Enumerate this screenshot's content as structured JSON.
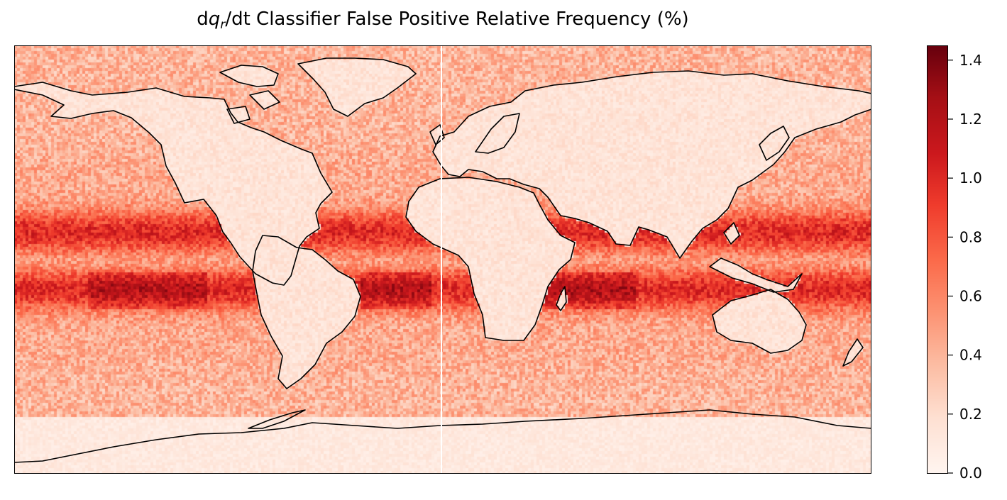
{
  "chart_data": {
    "type": "heatmap",
    "title": {
      "prefix": "d",
      "var": "q",
      "subscript": "r",
      "rest": "/dt Classifier False Positive Relative Frequency (%)"
    },
    "projection": "world map, longitude 0 at center (white line), no axis ticks",
    "colormap": "Reds",
    "colorbar": {
      "range": [
        0.0,
        1.45
      ],
      "ticks": [
        "0.0",
        "0.2",
        "0.4",
        "0.6",
        "0.8",
        "1.0",
        "1.2",
        "1.4"
      ],
      "tick_values": [
        0.0,
        0.2,
        0.4,
        0.6,
        0.8,
        1.0,
        1.2,
        1.4
      ],
      "placement": "right"
    },
    "field": {
      "ocean_tropical_peak": 1.0,
      "ocean_subtropical": 0.55,
      "ocean_high_latitude": 0.4,
      "land": 0.08,
      "antarctica": 0.05
    },
    "colors": {
      "low": "#fff5f0",
      "mid": "#fb6a4a",
      "high": "#67000d",
      "coastline": "#000000",
      "meridian_line": "#ffffff"
    },
    "grid": false
  }
}
